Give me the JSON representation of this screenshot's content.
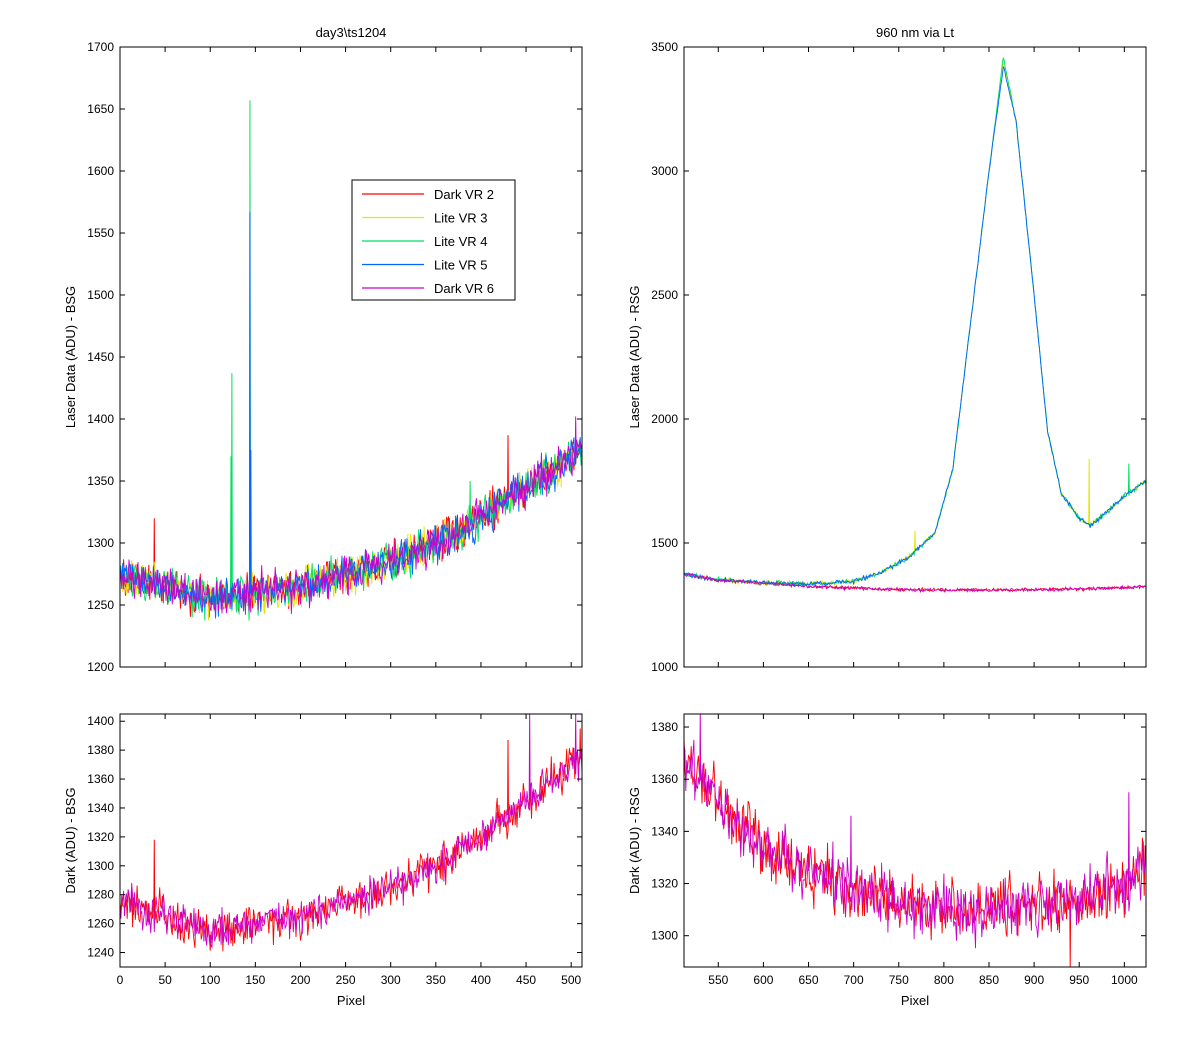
{
  "colors": {
    "background": "#ffffff",
    "axes": "#000000",
    "dark_vr2": "#ff0000",
    "lite_vr3": "#e6e600",
    "lite_vr4": "#00e060",
    "lite_vr5": "#0066ff",
    "dark_vr6": "#cc00cc"
  },
  "chart_data": [
    {
      "id": "top-left",
      "type": "line",
      "title": "day3\\ts1204",
      "xlabel": "",
      "ylabel": "Laser Data (ADU) - BSG",
      "xlim": [
        0,
        512
      ],
      "ylim": [
        1200,
        1700
      ],
      "yticks": [
        1200,
        1250,
        1300,
        1350,
        1400,
        1450,
        1500,
        1550,
        1600,
        1650,
        1700
      ],
      "xticks": [
        0,
        50,
        100,
        150,
        200,
        250,
        300,
        350,
        400,
        450,
        500
      ],
      "show_xtick_labels": false,
      "grid": false,
      "legend": "inside upper-middle",
      "series": [
        {
          "name": "Dark VR 2",
          "color": "#ff0000",
          "baseline": [
            [
              0,
              1275
            ],
            [
              50,
              1265
            ],
            [
              100,
              1255
            ],
            [
              150,
              1260
            ],
            [
              200,
              1265
            ],
            [
              250,
              1275
            ],
            [
              300,
              1285
            ],
            [
              350,
              1300
            ],
            [
              400,
              1320
            ],
            [
              450,
              1345
            ],
            [
              512,
              1375
            ]
          ],
          "noise": 14,
          "spikes": [
            [
              38,
              1320
            ],
            [
              430,
              1387
            ]
          ]
        },
        {
          "name": "Lite VR 3",
          "color": "#e6e600",
          "baseline": [
            [
              0,
              1275
            ],
            [
              50,
              1265
            ],
            [
              100,
              1255
            ],
            [
              150,
              1260
            ],
            [
              200,
              1265
            ],
            [
              250,
              1275
            ],
            [
              300,
              1285
            ],
            [
              350,
              1300
            ],
            [
              400,
              1320
            ],
            [
              450,
              1345
            ],
            [
              512,
              1375
            ]
          ],
          "noise": 14,
          "spikes": []
        },
        {
          "name": "Lite VR 4",
          "color": "#00e060",
          "baseline": [
            [
              0,
              1275
            ],
            [
              50,
              1265
            ],
            [
              100,
              1255
            ],
            [
              150,
              1260
            ],
            [
              200,
              1265
            ],
            [
              250,
              1275
            ],
            [
              300,
              1285
            ],
            [
              350,
              1300
            ],
            [
              400,
              1320
            ],
            [
              450,
              1345
            ],
            [
              512,
              1375
            ]
          ],
          "noise": 14,
          "spikes": [
            [
              124,
              1437
            ],
            [
              123,
              1370
            ],
            [
              144,
              1657
            ],
            [
              388,
              1350
            ]
          ]
        },
        {
          "name": "Lite VR 5",
          "color": "#0066ff",
          "baseline": [
            [
              0,
              1275
            ],
            [
              50,
              1265
            ],
            [
              100,
              1255
            ],
            [
              150,
              1260
            ],
            [
              200,
              1265
            ],
            [
              250,
              1275
            ],
            [
              300,
              1285
            ],
            [
              350,
              1300
            ],
            [
              400,
              1320
            ],
            [
              450,
              1345
            ],
            [
              512,
              1375
            ]
          ],
          "noise": 14,
          "spikes": [
            [
              144,
              1567
            ],
            [
              145,
              1375
            ]
          ]
        },
        {
          "name": "Dark VR 6",
          "color": "#cc00cc",
          "baseline": [
            [
              0,
              1275
            ],
            [
              50,
              1265
            ],
            [
              100,
              1255
            ],
            [
              150,
              1260
            ],
            [
              200,
              1265
            ],
            [
              250,
              1275
            ],
            [
              300,
              1285
            ],
            [
              350,
              1300
            ],
            [
              400,
              1320
            ],
            [
              450,
              1345
            ],
            [
              512,
              1375
            ]
          ],
          "noise": 14,
          "spikes": [
            [
              505,
              1402
            ]
          ]
        }
      ]
    },
    {
      "id": "top-right",
      "type": "line",
      "title": "960 nm via Lt",
      "xlabel": "",
      "ylabel": "Laser Data (ADU) - RSG",
      "xlim": [
        512,
        1024
      ],
      "ylim": [
        1000,
        3500
      ],
      "yticks": [
        1000,
        1500,
        2000,
        2500,
        3000,
        3500
      ],
      "xticks": [
        550,
        600,
        650,
        700,
        750,
        800,
        850,
        900,
        950,
        1000
      ],
      "show_xtick_labels": false,
      "grid": false,
      "series": [
        {
          "name": "Dark VR 2",
          "color": "#ff0000",
          "baseline": [
            [
              512,
              1375
            ],
            [
              550,
              1350
            ],
            [
              600,
              1338
            ],
            [
              650,
              1325
            ],
            [
              700,
              1318
            ],
            [
              750,
              1312
            ],
            [
              800,
              1310
            ],
            [
              850,
              1310
            ],
            [
              900,
              1312
            ],
            [
              950,
              1315
            ],
            [
              1000,
              1320
            ],
            [
              1024,
              1325
            ]
          ],
          "noise": 6,
          "spikes": []
        },
        {
          "name": "Lite VR 3",
          "color": "#e6e600",
          "baseline": [
            [
              512,
              1375
            ],
            [
              550,
              1352
            ],
            [
              600,
              1340
            ],
            [
              650,
              1335
            ],
            [
              700,
              1345
            ],
            [
              730,
              1380
            ],
            [
              760,
              1440
            ],
            [
              790,
              1540
            ],
            [
              810,
              1800
            ],
            [
              830,
              2400
            ],
            [
              850,
              3000
            ],
            [
              866,
              3450
            ],
            [
              880,
              3200
            ],
            [
              900,
              2500
            ],
            [
              915,
              1950
            ],
            [
              930,
              1700
            ],
            [
              950,
              1600
            ],
            [
              962,
              1570
            ],
            [
              980,
              1620
            ],
            [
              1000,
              1690
            ],
            [
              1024,
              1750
            ]
          ],
          "noise": 8,
          "spikes": [
            [
              768,
              1550
            ],
            [
              961,
              1840
            ]
          ]
        },
        {
          "name": "Lite VR 4",
          "color": "#00e060",
          "baseline": [
            [
              512,
              1375
            ],
            [
              550,
              1352
            ],
            [
              600,
              1340
            ],
            [
              650,
              1335
            ],
            [
              700,
              1345
            ],
            [
              730,
              1380
            ],
            [
              760,
              1440
            ],
            [
              790,
              1540
            ],
            [
              810,
              1800
            ],
            [
              830,
              2400
            ],
            [
              850,
              3000
            ],
            [
              866,
              3460
            ],
            [
              880,
              3200
            ],
            [
              900,
              2500
            ],
            [
              915,
              1950
            ],
            [
              930,
              1700
            ],
            [
              950,
              1600
            ],
            [
              962,
              1570
            ],
            [
              980,
              1620
            ],
            [
              1000,
              1690
            ],
            [
              1024,
              1750
            ]
          ],
          "noise": 8,
          "spikes": [
            [
              1005,
              1820
            ]
          ]
        },
        {
          "name": "Lite VR 5",
          "color": "#0066ff",
          "baseline": [
            [
              512,
              1375
            ],
            [
              550,
              1352
            ],
            [
              600,
              1340
            ],
            [
              650,
              1335
            ],
            [
              700,
              1345
            ],
            [
              730,
              1380
            ],
            [
              760,
              1440
            ],
            [
              790,
              1540
            ],
            [
              810,
              1800
            ],
            [
              830,
              2400
            ],
            [
              850,
              3000
            ],
            [
              866,
              3420
            ],
            [
              880,
              3200
            ],
            [
              900,
              2500
            ],
            [
              915,
              1950
            ],
            [
              930,
              1700
            ],
            [
              950,
              1600
            ],
            [
              962,
              1570
            ],
            [
              980,
              1620
            ],
            [
              1000,
              1690
            ],
            [
              1024,
              1750
            ]
          ],
          "noise": 8,
          "spikes": []
        },
        {
          "name": "Dark VR 6",
          "color": "#cc00cc",
          "baseline": [
            [
              512,
              1375
            ],
            [
              550,
              1350
            ],
            [
              600,
              1338
            ],
            [
              650,
              1325
            ],
            [
              700,
              1318
            ],
            [
              750,
              1312
            ],
            [
              800,
              1310
            ],
            [
              850,
              1310
            ],
            [
              900,
              1312
            ],
            [
              950,
              1315
            ],
            [
              1000,
              1320
            ],
            [
              1024,
              1325
            ]
          ],
          "noise": 6,
          "spikes": []
        }
      ]
    },
    {
      "id": "bottom-left",
      "type": "line",
      "title": "",
      "xlabel": "Pixel",
      "ylabel": "Dark (ADU) - BSG",
      "xlim": [
        0,
        512
      ],
      "ylim": [
        1230,
        1405
      ],
      "yticks": [
        1240,
        1260,
        1280,
        1300,
        1320,
        1340,
        1360,
        1380,
        1400
      ],
      "xticks": [
        0,
        50,
        100,
        150,
        200,
        250,
        300,
        350,
        400,
        450,
        500
      ],
      "show_xtick_labels": true,
      "grid": false,
      "series": [
        {
          "name": "Dark VR 2",
          "color": "#ff0000",
          "baseline": [
            [
              0,
              1275
            ],
            [
              50,
              1265
            ],
            [
              100,
              1255
            ],
            [
              150,
              1260
            ],
            [
              200,
              1265
            ],
            [
              250,
              1275
            ],
            [
              300,
              1285
            ],
            [
              350,
              1300
            ],
            [
              400,
              1320
            ],
            [
              450,
              1345
            ],
            [
              512,
              1375
            ]
          ],
          "noise": 12,
          "spikes": [
            [
              38,
              1318
            ],
            [
              430,
              1387
            ],
            [
              510,
              1395
            ]
          ]
        },
        {
          "name": "Dark VR 6",
          "color": "#cc00cc",
          "baseline": [
            [
              0,
              1275
            ],
            [
              50,
              1265
            ],
            [
              100,
              1255
            ],
            [
              150,
              1260
            ],
            [
              200,
              1265
            ],
            [
              250,
              1275
            ],
            [
              300,
              1285
            ],
            [
              350,
              1300
            ],
            [
              400,
              1320
            ],
            [
              450,
              1345
            ],
            [
              512,
              1375
            ]
          ],
          "noise": 12,
          "spikes": [
            [
              454,
              1405
            ],
            [
              505,
              1405
            ]
          ]
        }
      ]
    },
    {
      "id": "bottom-right",
      "type": "line",
      "title": "",
      "xlabel": "Pixel",
      "ylabel": "Dark (ADU) - RSG",
      "xlim": [
        512,
        1024
      ],
      "ylim": [
        1288,
        1385
      ],
      "yticks": [
        1300,
        1320,
        1340,
        1360,
        1380
      ],
      "xticks": [
        550,
        600,
        650,
        700,
        750,
        800,
        850,
        900,
        950,
        1000
      ],
      "show_xtick_labels": true,
      "grid": false,
      "series": [
        {
          "name": "Dark VR 2",
          "color": "#ff0000",
          "baseline": [
            [
              512,
              1368
            ],
            [
              550,
              1350
            ],
            [
              600,
              1335
            ],
            [
              650,
              1325
            ],
            [
              700,
              1318
            ],
            [
              750,
              1313
            ],
            [
              800,
              1310
            ],
            [
              850,
              1310
            ],
            [
              900,
              1311
            ],
            [
              950,
              1314
            ],
            [
              1000,
              1320
            ],
            [
              1024,
              1325
            ]
          ],
          "noise": 10,
          "spikes": [
            [
              940,
              1288
            ]
          ]
        },
        {
          "name": "Dark VR 6",
          "color": "#cc00cc",
          "baseline": [
            [
              512,
              1368
            ],
            [
              550,
              1350
            ],
            [
              600,
              1335
            ],
            [
              650,
              1325
            ],
            [
              700,
              1318
            ],
            [
              750,
              1313
            ],
            [
              800,
              1310
            ],
            [
              850,
              1310
            ],
            [
              900,
              1311
            ],
            [
              950,
              1314
            ],
            [
              1000,
              1320
            ],
            [
              1024,
              1325
            ]
          ],
          "noise": 10,
          "spikes": [
            [
              530,
              1385
            ],
            [
              697,
              1346
            ],
            [
              1005,
              1355
            ]
          ]
        }
      ]
    }
  ]
}
